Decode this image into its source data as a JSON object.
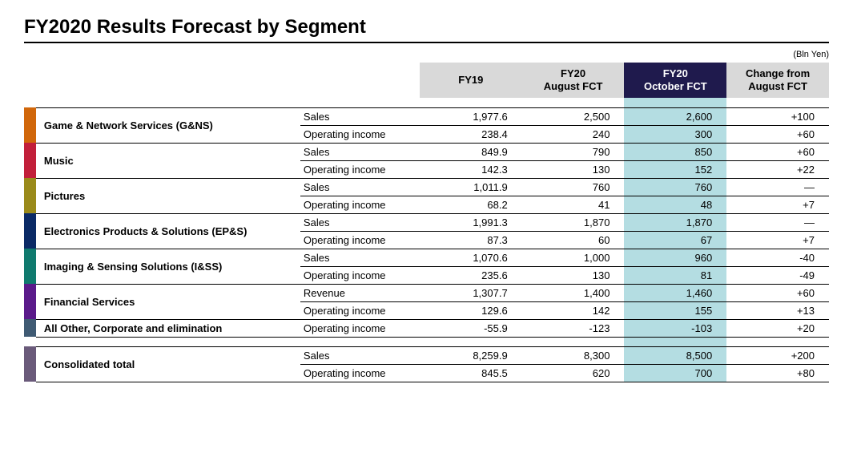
{
  "title": "FY2020 Results Forecast by Segment",
  "unit_label": "(Bln Yen)",
  "columns": {
    "c0": "FY19",
    "c1_line1": "FY20",
    "c1_line2": "August FCT",
    "c2_line1": "FY20",
    "c2_line2": "October FCT",
    "c3_line1": "Change from",
    "c3_line2": "August FCT"
  },
  "colors": {
    "header_bg": "#d9d9d9",
    "header_oct_bg": "#1f1a4d",
    "highlight_bg": "#b4dde2"
  },
  "segments": [
    {
      "name": "Game & Network Services (G&NS)",
      "color": "#d1670b",
      "rows": [
        {
          "metric": "Sales",
          "v": [
            "1,977.6",
            "2,500",
            "2,600",
            "+100"
          ]
        },
        {
          "metric": "Operating income",
          "v": [
            "238.4",
            "240",
            "300",
            "+60"
          ]
        }
      ]
    },
    {
      "name": "Music",
      "color": "#c21f3a",
      "rows": [
        {
          "metric": "Sales",
          "v": [
            "849.9",
            "790",
            "850",
            "+60"
          ]
        },
        {
          "metric": "Operating income",
          "v": [
            "142.3",
            "130",
            "152",
            "+22"
          ]
        }
      ]
    },
    {
      "name": "Pictures",
      "color": "#9a8a1a",
      "rows": [
        {
          "metric": "Sales",
          "v": [
            "1,011.9",
            "760",
            "760",
            "—"
          ]
        },
        {
          "metric": "Operating income",
          "v": [
            "68.2",
            "41",
            "48",
            "+7"
          ]
        }
      ]
    },
    {
      "name": "Electronics Products & Solutions (EP&S)",
      "color": "#0b2a66",
      "rows": [
        {
          "metric": "Sales",
          "v": [
            "1,991.3",
            "1,870",
            "1,870",
            "—"
          ]
        },
        {
          "metric": "Operating income",
          "v": [
            "87.3",
            "60",
            "67",
            "+7"
          ]
        }
      ]
    },
    {
      "name": "Imaging & Sensing Solutions (I&SS)",
      "color": "#0f7a6e",
      "rows": [
        {
          "metric": "Sales",
          "v": [
            "1,070.6",
            "1,000",
            "960",
            "-40"
          ]
        },
        {
          "metric": "Operating income",
          "v": [
            "235.6",
            "130",
            "81",
            "-49"
          ]
        }
      ]
    },
    {
      "name": "Financial Services",
      "color": "#5a1a8a",
      "rows": [
        {
          "metric": "Revenue",
          "v": [
            "1,307.7",
            "1,400",
            "1,460",
            "+60"
          ]
        },
        {
          "metric": "Operating income",
          "v": [
            "129.6",
            "142",
            "155",
            "+13"
          ]
        }
      ]
    },
    {
      "name": "All Other, Corporate and elimination",
      "color": "#3f5a73",
      "rows": [
        {
          "metric": "Operating income",
          "v": [
            "-55.9",
            "-123",
            "-103",
            "+20"
          ]
        }
      ]
    }
  ],
  "total": {
    "name": "Consolidated total",
    "color": "#6a5a7a",
    "rows": [
      {
        "metric": "Sales",
        "v": [
          "8,259.9",
          "8,300",
          "8,500",
          "+200"
        ]
      },
      {
        "metric": "Operating income",
        "v": [
          "845.5",
          "620",
          "700",
          "+80"
        ]
      }
    ]
  }
}
